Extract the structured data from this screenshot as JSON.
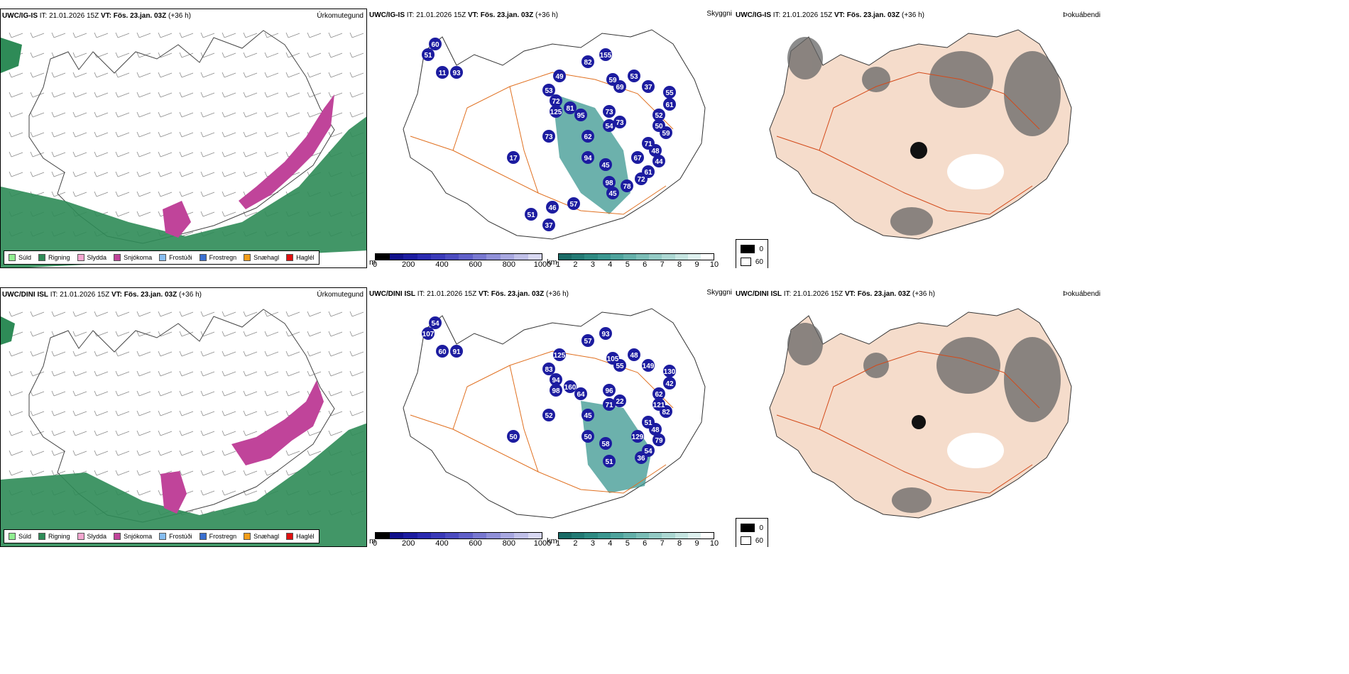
{
  "top": {
    "model": "UWC/IG-IS",
    "it_label": "IT:",
    "it_value": "21.01.2026 15Z",
    "vt_label": "VT:",
    "vt_value": "Fös. 23.jan. 03Z",
    "lead": "(+36 h)",
    "labels_snow": [
      "60",
      "51",
      "11",
      "93",
      "53",
      "49",
      "72",
      "125",
      "81",
      "95",
      "82",
      "155",
      "59",
      "53",
      "69",
      "37",
      "55",
      "61",
      "73",
      "73",
      "54",
      "62",
      "94",
      "45",
      "52",
      "50",
      "59",
      "71",
      "48",
      "67",
      "61",
      "44",
      "73",
      "17",
      "72",
      "98",
      "78",
      "45",
      "46",
      "57",
      "51",
      "37"
    ]
  },
  "bottom": {
    "model": "UWC/DINI ISL",
    "it_label": "IT:",
    "it_value": "21.01.2026 15Z",
    "vt_label": "VT:",
    "vt_value": "Fös. 23.jan. 03Z",
    "lead": "(+36 h)",
    "labels_snow": [
      "54",
      "107",
      "60",
      "91",
      "83",
      "125",
      "94",
      "98",
      "160",
      "64",
      "57",
      "93",
      "105",
      "48",
      "55",
      "149",
      "130",
      "42",
      "96",
      "22",
      "71",
      "45",
      "50",
      "58",
      "62",
      "121",
      "82",
      "51",
      "48",
      "129",
      "54",
      "79",
      "52",
      "50",
      "36",
      "51"
    ]
  },
  "panel_types": {
    "precip": "Úrkomutegund",
    "vis": "Skyggni",
    "cloud": "Þokuábendi"
  },
  "precip_legend": [
    {
      "label": "Súld",
      "color": "#90ee90"
    },
    {
      "label": "Rigning",
      "color": "#2e8b57"
    },
    {
      "label": "Slydda",
      "color": "#f4a6d0"
    },
    {
      "label": "Snjókoma",
      "color": "#c0449a"
    },
    {
      "label": "Frostúði",
      "color": "#87bdf0"
    },
    {
      "label": "Frostregn",
      "color": "#3a6fd0"
    },
    {
      "label": "Snæhagl",
      "color": "#f29d1a"
    },
    {
      "label": "Haglél",
      "color": "#e01010"
    }
  ],
  "depth_bar": {
    "unit": "m",
    "ticks": [
      "0",
      "200",
      "400",
      "600",
      "800",
      "1000"
    ],
    "colors": [
      "#000000",
      "#10108a",
      "#1c1ca0",
      "#2a2ab0",
      "#3a3ab8",
      "#4c4cc0",
      "#6060c8",
      "#7878d0",
      "#9090d8",
      "#a8a8e0",
      "#c0c0e8",
      "#d8d8f2"
    ]
  },
  "vis_bar": {
    "unit": "km",
    "ticks": [
      "1",
      "2",
      "3",
      "4",
      "5",
      "6",
      "7",
      "8",
      "9",
      "10"
    ],
    "colors": [
      "#1a6b66",
      "#237a74",
      "#2e8a82",
      "#3b9790",
      "#4ea39c",
      "#64b0a9",
      "#7bbdb6",
      "#93cac4",
      "#acd7d2",
      "#c5e4e0",
      "#def1ef",
      "#ffffff"
    ]
  },
  "fog_legend": [
    {
      "label": "0",
      "color": "#000000"
    },
    {
      "label": "60",
      "color": "#ffffff"
    }
  ]
}
